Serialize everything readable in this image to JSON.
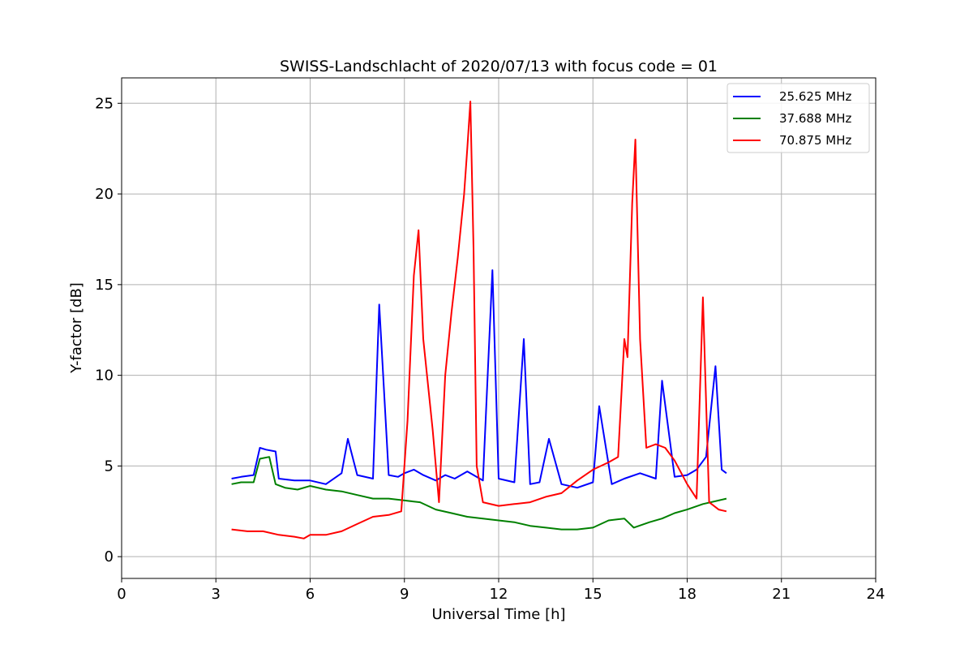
{
  "chart_data": {
    "type": "line",
    "title": "SWISS-Landschlacht of 2020/07/13 with focus code = 01",
    "xlabel": "Universal Time [h]",
    "ylabel": "Y-factor [dB]",
    "xlim": [
      0,
      24
    ],
    "ylim": [
      -1.2,
      26.4
    ],
    "xticks": [
      0,
      3,
      6,
      9,
      12,
      15,
      18,
      21,
      24
    ],
    "yticks": [
      0,
      5,
      10,
      15,
      20,
      25
    ],
    "grid": true,
    "legend_position": "top-right",
    "series": [
      {
        "name": "25.625 MHz",
        "color": "#0000ff",
        "x": [
          3.5,
          3.8,
          4.2,
          4.4,
          4.6,
          4.9,
          5.0,
          5.5,
          6.0,
          6.5,
          7.0,
          7.2,
          7.5,
          8.0,
          8.2,
          8.5,
          8.8,
          9.0,
          9.3,
          9.6,
          10.0,
          10.3,
          10.6,
          11.0,
          11.5,
          11.8,
          12.0,
          12.5,
          12.8,
          13.0,
          13.3,
          13.6,
          14.0,
          14.5,
          15.0,
          15.2,
          15.6,
          16.0,
          16.5,
          17.0,
          17.2,
          17.6,
          18.0,
          18.3,
          18.6,
          18.9,
          19.1,
          19.25
        ],
        "y": [
          4.3,
          4.4,
          4.5,
          6.0,
          5.9,
          5.8,
          4.3,
          4.2,
          4.2,
          4.0,
          4.6,
          6.5,
          4.5,
          4.3,
          13.9,
          4.5,
          4.4,
          4.6,
          4.8,
          4.5,
          4.2,
          4.5,
          4.3,
          4.7,
          4.2,
          15.8,
          4.3,
          4.1,
          12.0,
          4.0,
          4.1,
          6.5,
          4.0,
          3.8,
          4.1,
          8.3,
          4.0,
          4.3,
          4.6,
          4.3,
          9.7,
          4.4,
          4.5,
          4.8,
          5.5,
          10.5,
          4.8,
          4.6
        ]
      },
      {
        "name": "37.688 MHz",
        "color": "#008000",
        "x": [
          3.5,
          3.8,
          4.2,
          4.4,
          4.7,
          4.9,
          5.2,
          5.6,
          6.0,
          6.5,
          7.0,
          7.5,
          8.0,
          8.5,
          9.0,
          9.5,
          10.0,
          10.5,
          11.0,
          11.5,
          12.0,
          12.5,
          13.0,
          13.5,
          14.0,
          14.5,
          15.0,
          15.5,
          16.0,
          16.3,
          16.8,
          17.2,
          17.6,
          18.0,
          18.5,
          19.0,
          19.25
        ],
        "y": [
          4.0,
          4.1,
          4.1,
          5.4,
          5.5,
          4.0,
          3.8,
          3.7,
          3.9,
          3.7,
          3.6,
          3.4,
          3.2,
          3.2,
          3.1,
          3.0,
          2.6,
          2.4,
          2.2,
          2.1,
          2.0,
          1.9,
          1.7,
          1.6,
          1.5,
          1.5,
          1.6,
          2.0,
          2.1,
          1.6,
          1.9,
          2.1,
          2.4,
          2.6,
          2.9,
          3.1,
          3.2
        ]
      },
      {
        "name": "70.875 MHz",
        "color": "#ff0000",
        "x": [
          3.5,
          4.0,
          4.5,
          5.0,
          5.5,
          5.8,
          6.0,
          6.5,
          7.0,
          7.5,
          8.0,
          8.5,
          8.9,
          9.1,
          9.3,
          9.45,
          9.6,
          9.75,
          9.9,
          10.1,
          10.3,
          10.5,
          10.7,
          10.9,
          11.0,
          11.1,
          11.2,
          11.3,
          11.5,
          12.0,
          12.5,
          13.0,
          13.5,
          14.0,
          14.5,
          15.0,
          15.5,
          15.8,
          16.0,
          16.1,
          16.25,
          16.35,
          16.5,
          16.7,
          17.0,
          17.3,
          17.6,
          18.0,
          18.3,
          18.5,
          18.7,
          19.0,
          19.25
        ],
        "y": [
          1.5,
          1.4,
          1.4,
          1.2,
          1.1,
          1.0,
          1.2,
          1.2,
          1.4,
          1.8,
          2.2,
          2.3,
          2.5,
          7.5,
          15.5,
          18.0,
          12.0,
          9.5,
          7.0,
          3.0,
          10.0,
          13.5,
          16.5,
          20.0,
          22.5,
          25.1,
          17.0,
          5.0,
          3.0,
          2.8,
          2.9,
          3.0,
          3.3,
          3.5,
          4.2,
          4.8,
          5.2,
          5.5,
          12.0,
          11.0,
          19.5,
          23.0,
          12.0,
          6.0,
          6.2,
          6.0,
          5.3,
          4.0,
          3.2,
          14.3,
          3.0,
          2.6,
          2.5
        ]
      }
    ]
  }
}
